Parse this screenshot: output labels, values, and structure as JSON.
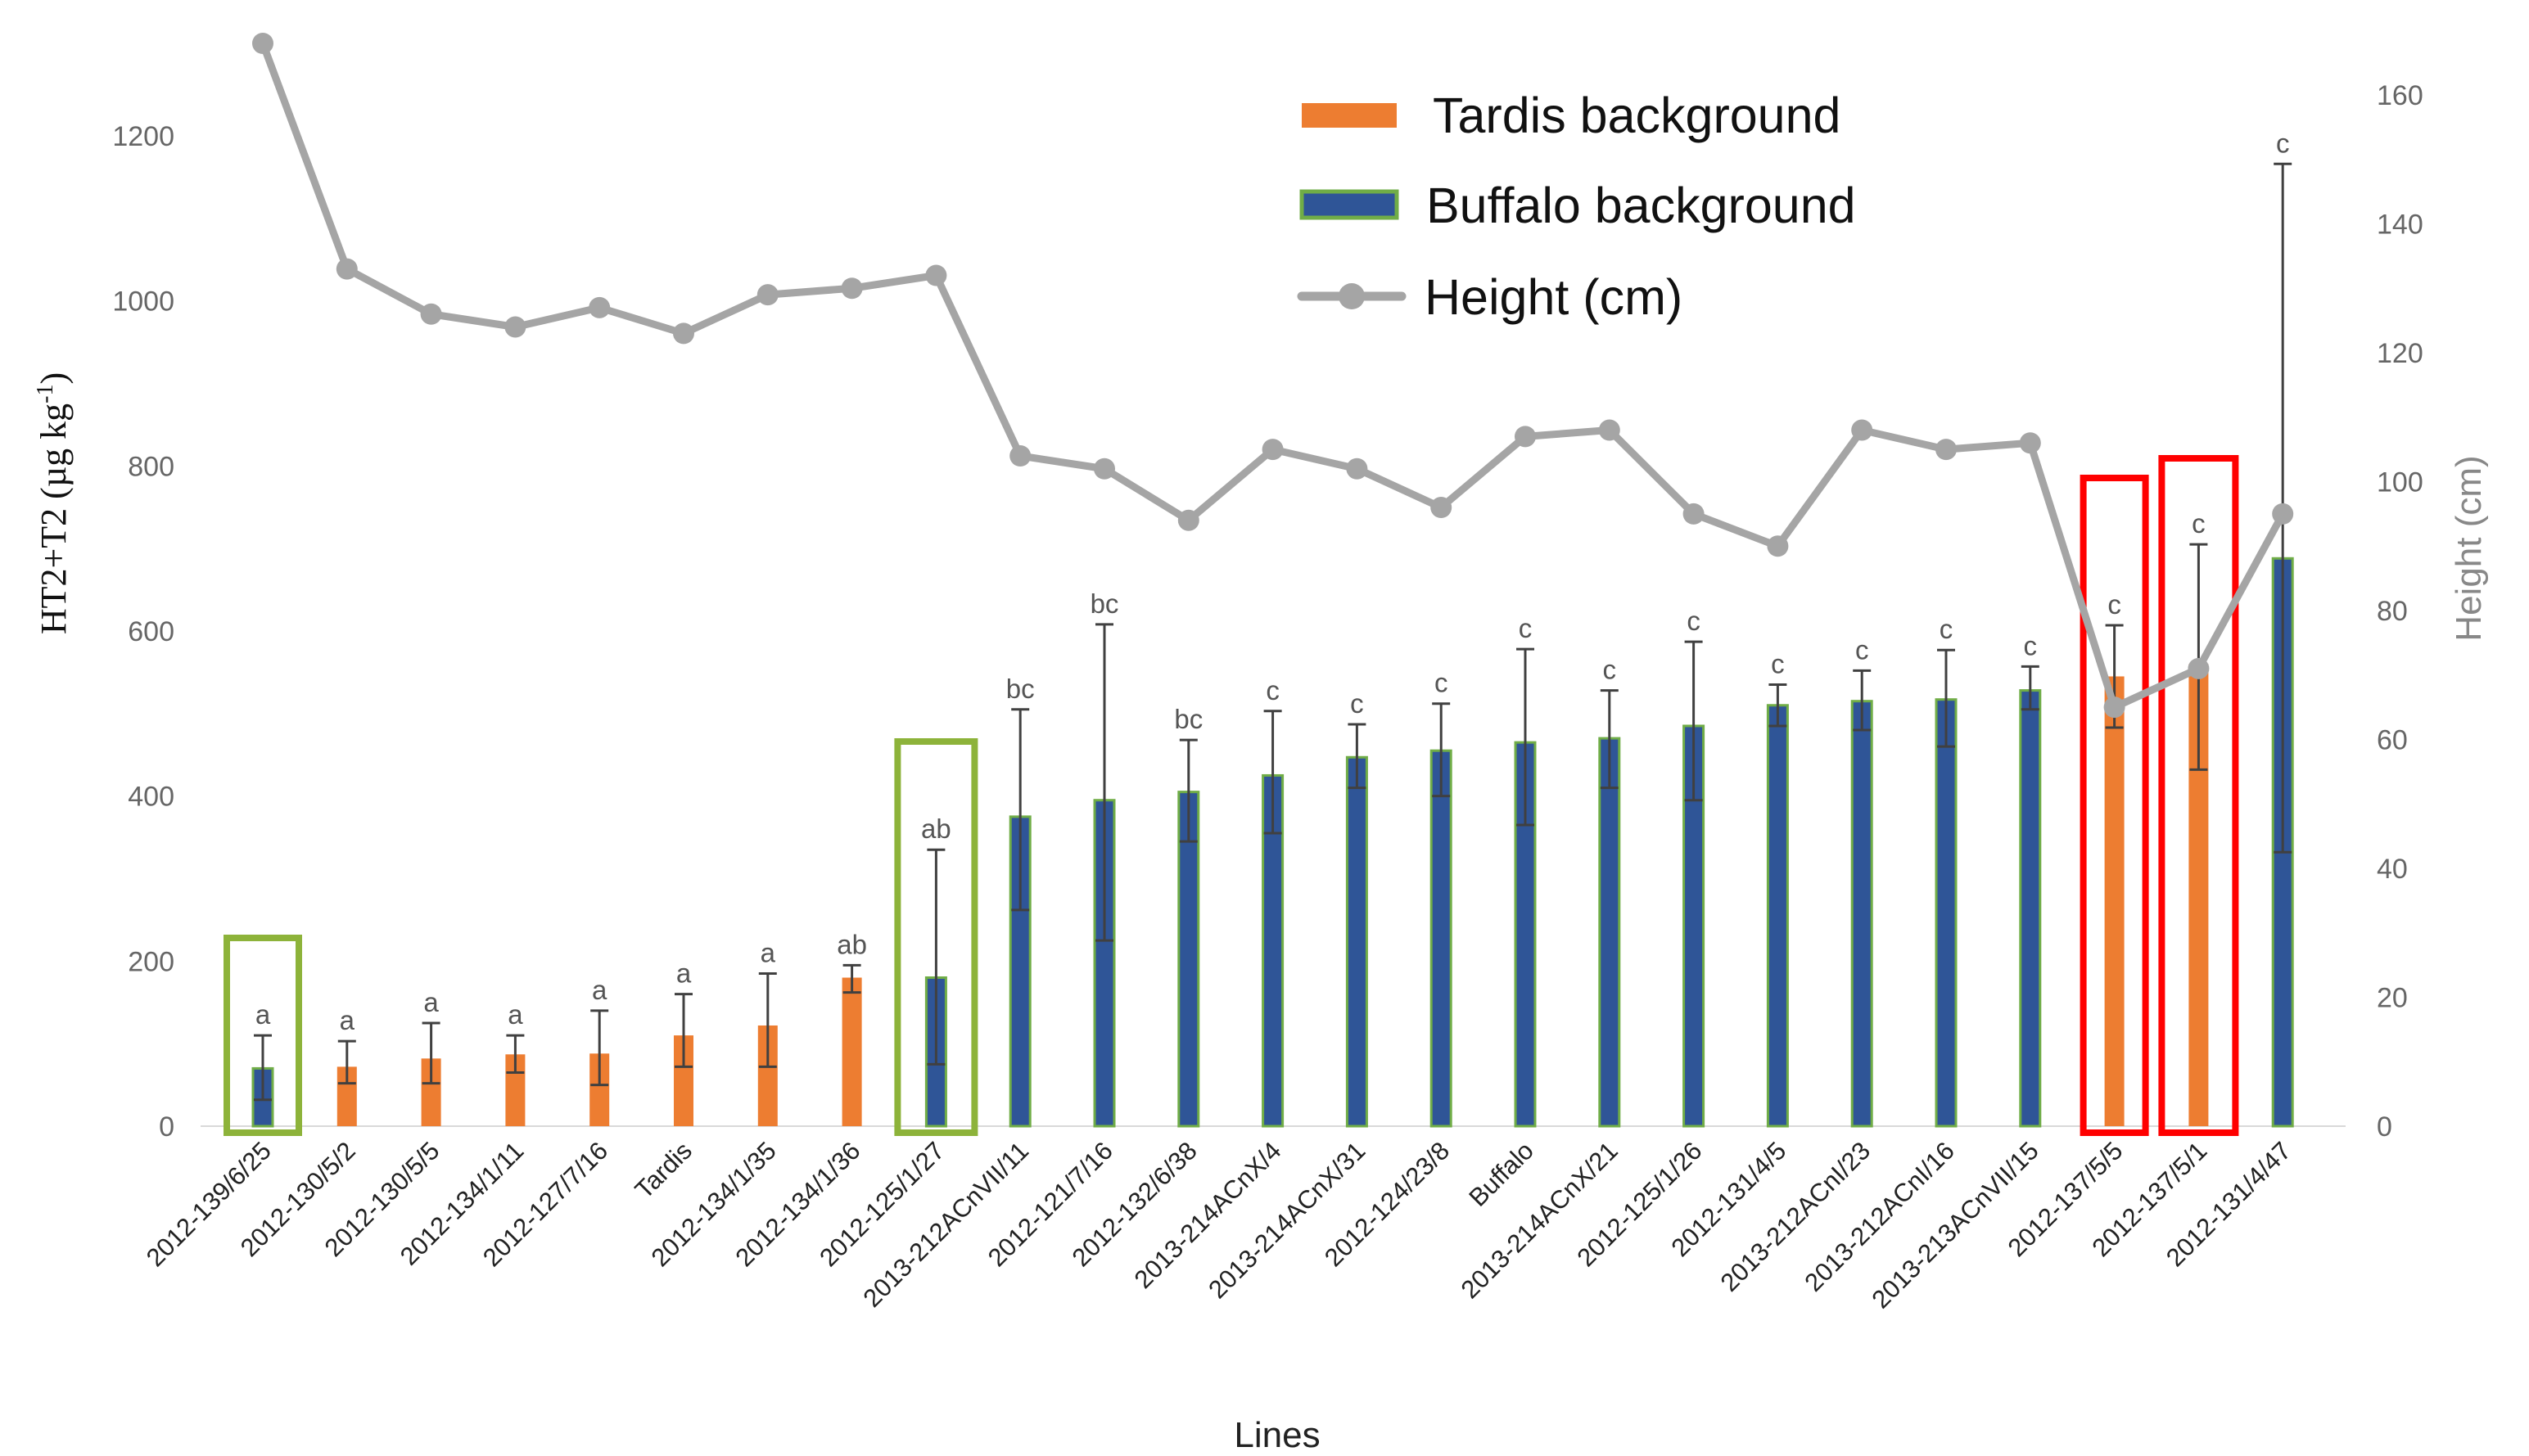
{
  "chart_data": {
    "type": "bar",
    "xlabel": "Lines",
    "ylabel": "HT2+T2 (µg kg-1)",
    "ylabel_main": "HT2+T2 (µg kg",
    "ylabel_sup": "-1",
    "ylabel_tail": ")",
    "y2label": "Height (cm)",
    "ylim": [
      0,
      1300
    ],
    "y2lim": [
      0,
      170
    ],
    "yticks": [
      "0",
      "200",
      "400",
      "600",
      "800",
      "1000",
      "1200"
    ],
    "y2ticks": [
      "0",
      "20",
      "40",
      "60",
      "80",
      "100",
      "120",
      "140",
      "160"
    ],
    "categories": [
      "2012-139/6/25",
      "2012-130/5/2",
      "2012-130/5/5",
      "2012-134/1/11",
      "2012-127/7/16",
      "Tardis",
      "2012-134/1/35",
      "2012-134/1/36",
      "2012-125/1/27",
      "2013-212ACnVII/11",
      "2012-121/7/16",
      "2012-132/6/38",
      "2013-214ACnX/4",
      "2013-214ACnX/31",
      "2012-124/23/8",
      "Buffalo",
      "2013-214ACnX/21",
      "2012-125/1/26",
      "2012-131/4/5",
      "2013-212ACnI/23",
      "2013-212ACnI/16",
      "2013-213ACnVII/15",
      "2012-137/5/5",
      "2012-137/5/1",
      "2012-131/4/47"
    ],
    "series": [
      {
        "name": "Tardis background",
        "kind": "bar",
        "color": "#ED7D31",
        "outline": "#70AD47"
      },
      {
        "name": "Buffalo background",
        "kind": "bar",
        "color": "#2F5597",
        "outline": "#70AD47"
      },
      {
        "name": "Height (cm)",
        "kind": "line",
        "axis": "right",
        "color": "#A5A5A5",
        "values": [
          168,
          133,
          126,
          124,
          127,
          123,
          129,
          130,
          132,
          104,
          102,
          94,
          105,
          102,
          96,
          107,
          108,
          95,
          90,
          108,
          105,
          106,
          65,
          71,
          95
        ]
      }
    ],
    "values": [
      70,
      72,
      82,
      87,
      88,
      110,
      122,
      180,
      180,
      375,
      395,
      405,
      425,
      447,
      455,
      465,
      470,
      485,
      510,
      515,
      517,
      528,
      545,
      560,
      688
    ],
    "background": [
      "Buffalo",
      "Tardis",
      "Tardis",
      "Tardis",
      "Tardis",
      "Tardis",
      "Tardis",
      "Tardis",
      "Buffalo",
      "Buffalo",
      "Buffalo",
      "Buffalo",
      "Buffalo",
      "Buffalo",
      "Buffalo",
      "Buffalo",
      "Buffalo",
      "Buffalo",
      "Buffalo",
      "Buffalo",
      "Buffalo",
      "Buffalo",
      "Tardis",
      "Tardis",
      "Buffalo"
    ],
    "error_low": [
      32,
      52,
      52,
      65,
      50,
      72,
      72,
      162,
      75,
      262,
      225,
      345,
      355,
      410,
      400,
      365,
      410,
      395,
      485,
      480,
      460,
      505,
      483,
      432,
      332
    ],
    "error_high": [
      110,
      103,
      125,
      110,
      140,
      160,
      185,
      195,
      335,
      505,
      608,
      468,
      503,
      487,
      512,
      578,
      528,
      587,
      535,
      552,
      577,
      557,
      607,
      705,
      1166
    ],
    "significance": [
      "a",
      "a",
      "a",
      "a",
      "a",
      "a",
      "a",
      "ab",
      "ab",
      "bc",
      "bc",
      "bc",
      "c",
      "c",
      "c",
      "c",
      "c",
      "c",
      "c",
      "c",
      "c",
      "c",
      "c",
      "c",
      "c"
    ],
    "highlight_green": [
      0,
      8
    ],
    "highlight_red": [
      22,
      23
    ],
    "highlight_colors": {
      "green": "#8DB33A",
      "red": "#FF0000"
    },
    "legend": {
      "position": "top-center",
      "items": [
        "Tardis background",
        "Buffalo background",
        "Height (cm)"
      ]
    }
  }
}
